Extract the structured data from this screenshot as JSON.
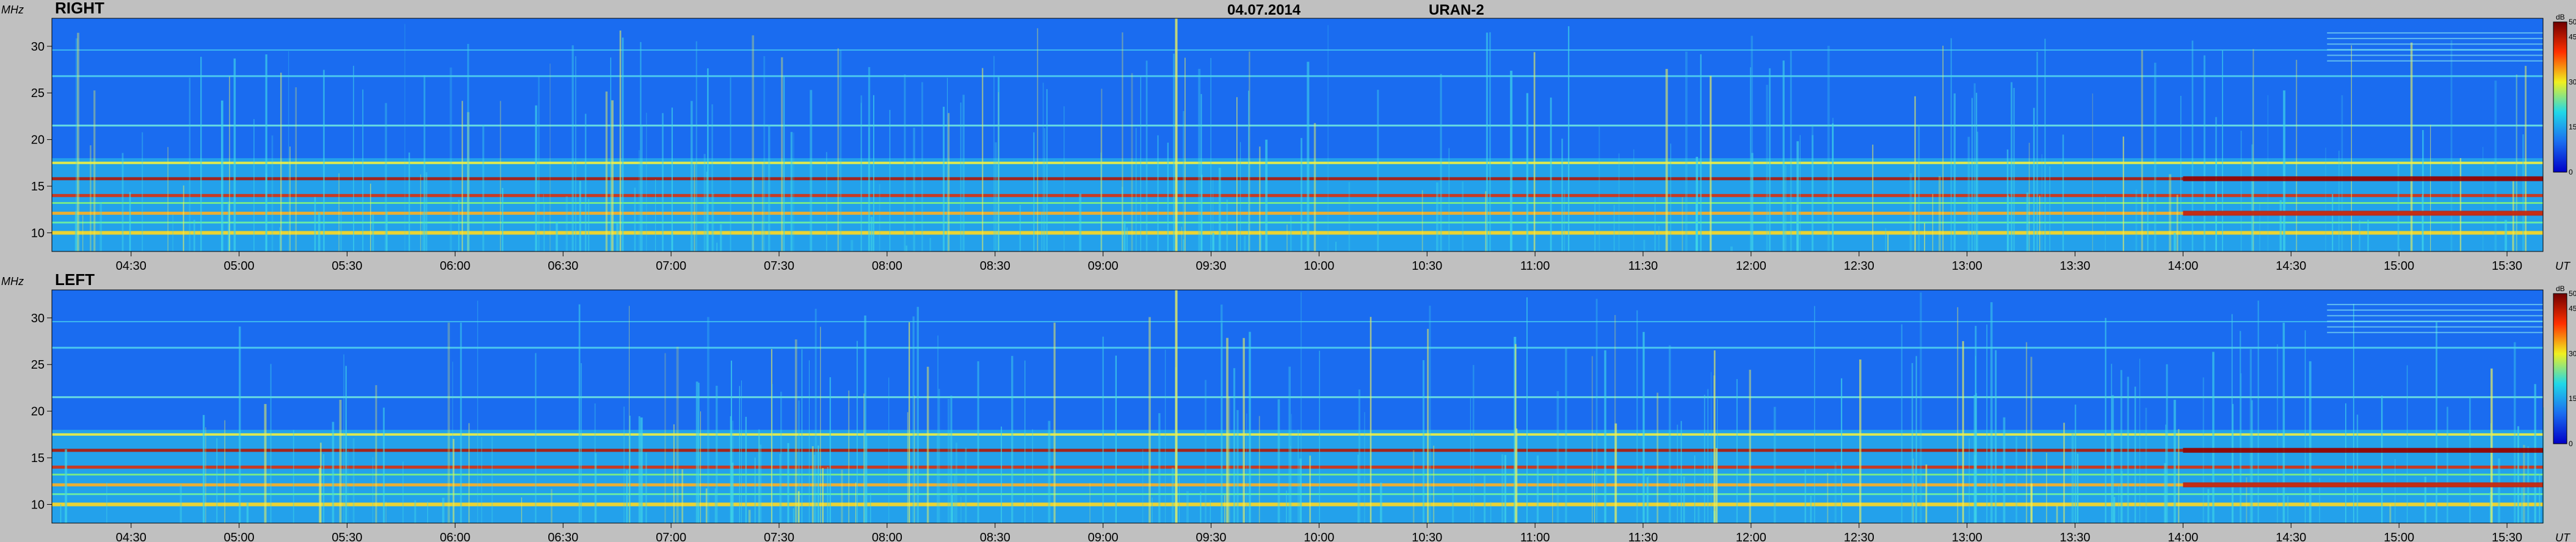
{
  "header": {
    "date": "04.07.2014",
    "instrument": "URAN-2"
  },
  "colors": {
    "background": "#c0c0c0",
    "spectrum_base": "#1a6cf0"
  },
  "chart_data": [
    {
      "type": "heatmap",
      "title": "RIGHT",
      "ylabel": "MHz",
      "xlabel": "UT",
      "ylim": [
        8,
        33
      ],
      "xlim": [
        "04:08",
        "15:40"
      ],
      "y_ticks": [
        10,
        15,
        20,
        25,
        30
      ],
      "x_ticks": [
        "04:30",
        "05:00",
        "05:30",
        "06:00",
        "06:30",
        "07:00",
        "07:30",
        "08:00",
        "08:30",
        "09:00",
        "09:30",
        "10:00",
        "10:30",
        "11:00",
        "11:30",
        "12:00",
        "12:30",
        "13:00",
        "13:30",
        "14:00",
        "14:30",
        "15:00",
        "15:30"
      ],
      "colorbar": {
        "unit": "dB",
        "ticks": [
          0,
          15,
          30,
          45,
          50
        ],
        "range": [
          0,
          50
        ]
      }
    },
    {
      "type": "heatmap",
      "title": "LEFT",
      "ylabel": "MHz",
      "xlabel": "UT",
      "ylim": [
        8,
        33
      ],
      "xlim": [
        "04:08",
        "15:40"
      ],
      "y_ticks": [
        10,
        15,
        20,
        25,
        30
      ],
      "x_ticks": [
        "04:30",
        "05:00",
        "05:30",
        "06:00",
        "06:30",
        "07:00",
        "07:30",
        "08:00",
        "08:30",
        "09:00",
        "09:30",
        "10:00",
        "10:30",
        "11:00",
        "11:30",
        "12:00",
        "12:30",
        "13:00",
        "13:30",
        "14:00",
        "14:30",
        "15:00",
        "15:30"
      ],
      "colorbar": {
        "unit": "dB",
        "ticks": [
          0,
          15,
          30,
          45,
          50
        ],
        "range": [
          0,
          50
        ]
      }
    }
  ]
}
